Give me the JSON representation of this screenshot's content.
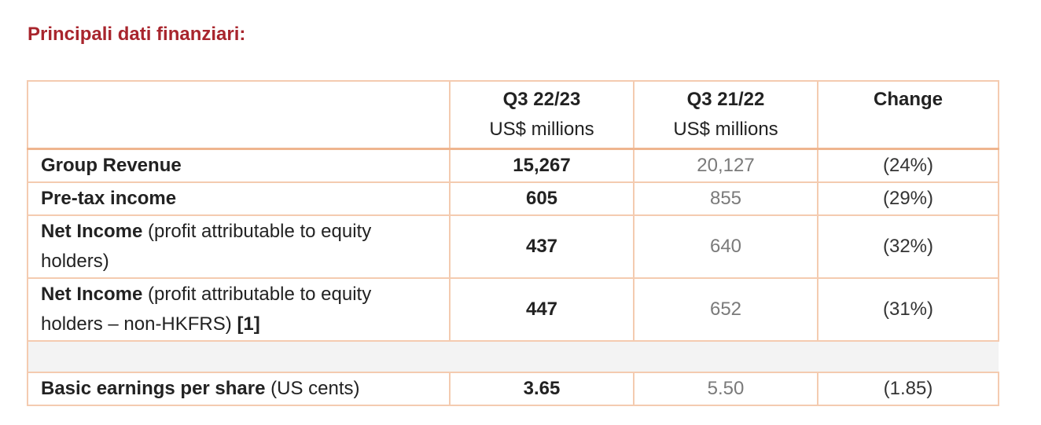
{
  "heading": "Principali dati finanziari:",
  "table": {
    "columns": [
      {
        "main": "",
        "unit": ""
      },
      {
        "main": "Q3 22/23",
        "unit": "US$ millions"
      },
      {
        "main": "Q3 21/22",
        "unit": "US$ millions"
      },
      {
        "main": "Change",
        "unit": ""
      }
    ],
    "rows": [
      {
        "label_bold": "Group Revenue",
        "label_rest": "",
        "label_ref": "",
        "current": "15,267",
        "previous": "20,127",
        "change": "(24%)"
      },
      {
        "label_bold": "Pre-tax income",
        "label_rest": "",
        "label_ref": "",
        "current": "605",
        "previous": "855",
        "change": "(29%)"
      },
      {
        "label_bold": "Net Income",
        "label_rest": " (profit attributable to equity holders)",
        "label_ref": "",
        "current": "437",
        "previous": "640",
        "change": "(32%)"
      },
      {
        "label_bold": "Net Income",
        "label_rest": " (profit attributable to equity holders – non-HKFRS) ",
        "label_ref": "[1]",
        "current": "447",
        "previous": "652",
        "change": "(31%)"
      },
      {
        "label_bold": "Basic earnings per share",
        "label_rest": " (US cents)",
        "label_ref": "",
        "current": "3.65",
        "previous": "5.50",
        "change": "(1.85)"
      }
    ]
  }
}
